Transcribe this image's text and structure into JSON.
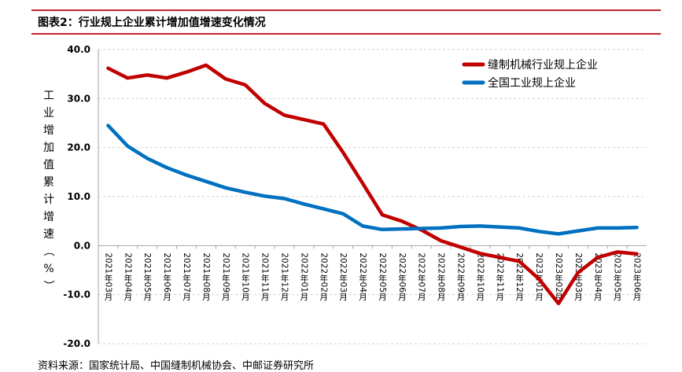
{
  "header": {
    "title": "图表2：行业规上企业累计增加值增速变化情况"
  },
  "footer": {
    "source": "资料来源：国家统计局、中国缝制机械协会、中邮证券研究所"
  },
  "chart_data": {
    "type": "line",
    "title": "图表2：行业规上企业累计增加值增速变化情况",
    "xlabel": "",
    "ylabel": "工业增加值累计增速（%）",
    "ylim": [
      -20.0,
      40.0
    ],
    "yticks": [
      "40.0",
      "30.0",
      "20.0",
      "10.0",
      "0.0",
      "-10.0",
      "-20.0"
    ],
    "ytick_values": [
      40,
      30,
      20,
      10,
      0,
      -10,
      -20
    ],
    "grid": true,
    "legend_position": "top-right",
    "categories": [
      "2021年03月",
      "2021年04月",
      "2021年05月",
      "2021年06月",
      "2021年07月",
      "2021年08月",
      "2021年09月",
      "2021年10月",
      "2021年11月",
      "2021年12月",
      "2022年01月",
      "2022年02月",
      "2022年03月",
      "2022年04月",
      "2022年05月",
      "2022年06月",
      "2022年07月",
      "2022年08月",
      "2022年09月",
      "2022年10月",
      "2022年11月",
      "2022年12月",
      "2023年01月",
      "2023年02月",
      "2023年03月",
      "2023年04月",
      "2023年05月",
      "2023年06月"
    ],
    "series": [
      {
        "name": "缝制机械行业规上企业",
        "color": "#c00000",
        "values": [
          36.2,
          34.2,
          34.8,
          34.2,
          35.4,
          36.8,
          34.0,
          32.8,
          29.0,
          26.6,
          25.7,
          24.8,
          19.0,
          12.7,
          6.3,
          5.0,
          3.2,
          1.0,
          -0.3,
          -1.6,
          -2.4,
          -3.2,
          -6.8,
          -11.8,
          -5.5,
          -2.4,
          -1.3,
          -1.7
        ]
      },
      {
        "name": "全国工业规上企业",
        "color": "#0070c0",
        "values": [
          24.5,
          20.3,
          17.8,
          15.9,
          14.4,
          13.1,
          11.8,
          10.9,
          10.1,
          9.6,
          8.5,
          7.5,
          6.5,
          4.0,
          3.3,
          3.4,
          3.5,
          3.6,
          3.9,
          4.0,
          3.8,
          3.6,
          2.9,
          2.4,
          3.0,
          3.6,
          3.6,
          3.7
        ]
      }
    ]
  }
}
